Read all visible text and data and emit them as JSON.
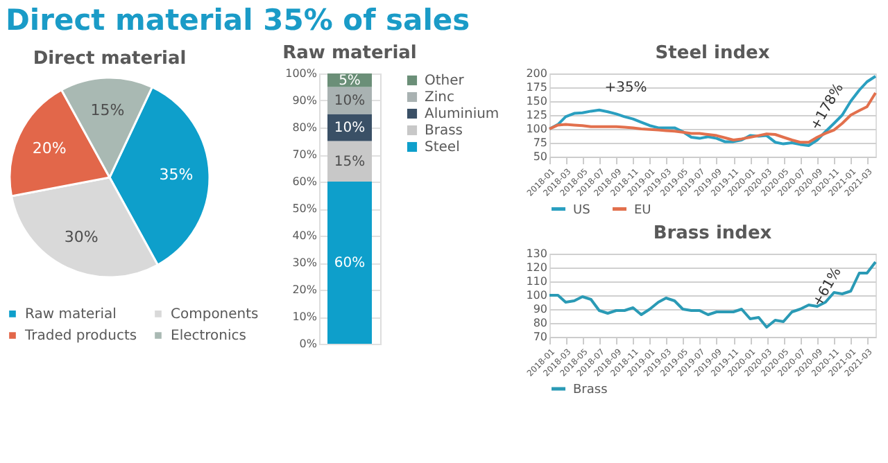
{
  "chart_data": [
    {
      "type": "pie",
      "title": "Direct material",
      "annotations": [
        "Direct material 35% of sales"
      ],
      "categories": [
        "Raw material",
        "Components",
        "Traded products",
        "Electronics"
      ],
      "values": [
        35,
        30,
        20,
        15
      ],
      "colors": [
        "#0e9fcb",
        "#d9d9d9",
        "#e2674a",
        "#a9b9b3"
      ],
      "value_labels": [
        "35%",
        "30%",
        "20%",
        "15%"
      ],
      "legend": "bottom"
    },
    {
      "type": "bar",
      "title": "Raw material",
      "stacked": true,
      "categories": [
        null
      ],
      "ylim": [
        0,
        100
      ],
      "yticks": [
        {
          "value": 0,
          "label": "0%"
        },
        {
          "value": 10,
          "label": "10%"
        },
        {
          "value": 20,
          "label": "20%"
        },
        {
          "value": 30,
          "label": "30%"
        },
        {
          "value": 40,
          "label": "40%"
        },
        {
          "value": 50,
          "label": "50%"
        },
        {
          "value": 60,
          "label": "60%"
        },
        {
          "value": 70,
          "label": "70%"
        },
        {
          "value": 80,
          "label": "80%"
        },
        {
          "value": 90,
          "label": "90%"
        },
        {
          "value": 100,
          "label": "100%"
        }
      ],
      "grid": "y",
      "legend": "right",
      "series": [
        {
          "name": "Steel",
          "color": "#0e9fcb",
          "values": [
            60
          ],
          "value_labels": [
            "60%"
          ]
        },
        {
          "name": "Brass",
          "color": "#c8c8c8",
          "values": [
            15
          ],
          "value_labels": [
            "15%"
          ]
        },
        {
          "name": "Aluminium",
          "color": "#3a5066",
          "values": [
            10
          ],
          "value_labels": [
            "10%"
          ]
        },
        {
          "name": "Zinc",
          "color": "#a9b2b2",
          "values": [
            10
          ],
          "value_labels": [
            "10%"
          ]
        },
        {
          "name": "Other",
          "color": "#6b8f78",
          "values": [
            5
          ],
          "value_labels": [
            "5%"
          ]
        }
      ]
    },
    {
      "type": "line",
      "title": "Steel index",
      "x": [
        "2018-01",
        "2018-02",
        "2018-03",
        "2018-04",
        "2018-05",
        "2018-06",
        "2018-07",
        "2018-08",
        "2018-09",
        "2018-10",
        "2018-11",
        "2018-12",
        "2019-01",
        "2019-02",
        "2019-03",
        "2019-04",
        "2019-05",
        "2019-06",
        "2019-07",
        "2019-08",
        "2019-09",
        "2019-10",
        "2019-11",
        "2019-12",
        "2020-01",
        "2020-02",
        "2020-03",
        "2020-04",
        "2020-05",
        "2020-06",
        "2020-07",
        "2020-08",
        "2020-09",
        "2020-10",
        "2020-11",
        "2020-12",
        "2021-01",
        "2021-02",
        "2021-03",
        "2021-04"
      ],
      "xlim": [
        "2018-01",
        "2021-04"
      ],
      "xticks": [
        "2018-01",
        "2018-03",
        "2018-05",
        "2018-07",
        "2018-09",
        "2018-11",
        "2019-01",
        "2019-03",
        "2019-05",
        "2019-07",
        "2019-09",
        "2019-11",
        "2020-01",
        "2020-03",
        "2020-05",
        "2020-07",
        "2020-09",
        "2020-11",
        "2021-01",
        "2021-03"
      ],
      "ylim": [
        50,
        200
      ],
      "yticks": [
        50,
        75,
        100,
        125,
        150,
        175,
        200
      ],
      "grid": "y",
      "legend": "bottom",
      "annotations": [
        "+35%",
        "+178%"
      ],
      "series": [
        {
          "name": "US",
          "color": "#2a9fc0",
          "values": [
            100,
            108,
            122,
            128,
            129,
            132,
            134,
            131,
            127,
            122,
            118,
            112,
            106,
            102,
            102,
            102,
            95,
            85,
            83,
            86,
            83,
            77,
            77,
            80,
            88,
            87,
            88,
            76,
            73,
            75,
            72,
            70,
            80,
            95,
            110,
            125,
            150,
            170,
            185,
            195
          ]
        },
        {
          "name": "EU",
          "color": "#e2704d",
          "values": [
            100,
            107,
            108,
            107,
            106,
            104,
            104,
            104,
            104,
            103,
            102,
            100,
            99,
            98,
            97,
            96,
            94,
            92,
            92,
            90,
            88,
            84,
            80,
            82,
            85,
            88,
            91,
            90,
            85,
            80,
            76,
            76,
            85,
            92,
            98,
            110,
            125,
            133,
            140,
            165
          ]
        }
      ]
    },
    {
      "type": "line",
      "title": "Brass index",
      "x": [
        "2018-01",
        "2018-02",
        "2018-03",
        "2018-04",
        "2018-05",
        "2018-06",
        "2018-07",
        "2018-08",
        "2018-09",
        "2018-10",
        "2018-11",
        "2018-12",
        "2019-01",
        "2019-02",
        "2019-03",
        "2019-04",
        "2019-05",
        "2019-06",
        "2019-07",
        "2019-08",
        "2019-09",
        "2019-10",
        "2019-11",
        "2019-12",
        "2020-01",
        "2020-02",
        "2020-03",
        "2020-04",
        "2020-05",
        "2020-06",
        "2020-07",
        "2020-08",
        "2020-09",
        "2020-10",
        "2020-11",
        "2020-12",
        "2021-01",
        "2021-02",
        "2021-03",
        "2021-04"
      ],
      "xlim": [
        "2018-01",
        "2021-04"
      ],
      "xticks": [
        "2018-01",
        "2018-03",
        "2018-05",
        "2018-07",
        "2018-09",
        "2018-11",
        "2019-01",
        "2019-03",
        "2019-05",
        "2019-07",
        "2019-09",
        "2019-11",
        "2020-01",
        "2020-03",
        "2020-05",
        "2020-07",
        "2020-09",
        "2020-11",
        "2021-01",
        "2021-03"
      ],
      "ylim": [
        70,
        130
      ],
      "yticks": [
        70,
        80,
        90,
        100,
        110,
        120,
        130
      ],
      "grid": "y",
      "legend": "bottom",
      "annotations": [
        "+61%"
      ],
      "series": [
        {
          "name": "Brass",
          "color": "#2a9ab5",
          "values": [
            100,
            100,
            95,
            96,
            99,
            97,
            89,
            87,
            89,
            89,
            91,
            86,
            90,
            95,
            98,
            96,
            90,
            89,
            89,
            86,
            88,
            88,
            88,
            90,
            83,
            84,
            77,
            82,
            81,
            88,
            90,
            93,
            92,
            95,
            102,
            101,
            103,
            116,
            116,
            124
          ]
        }
      ]
    }
  ]
}
